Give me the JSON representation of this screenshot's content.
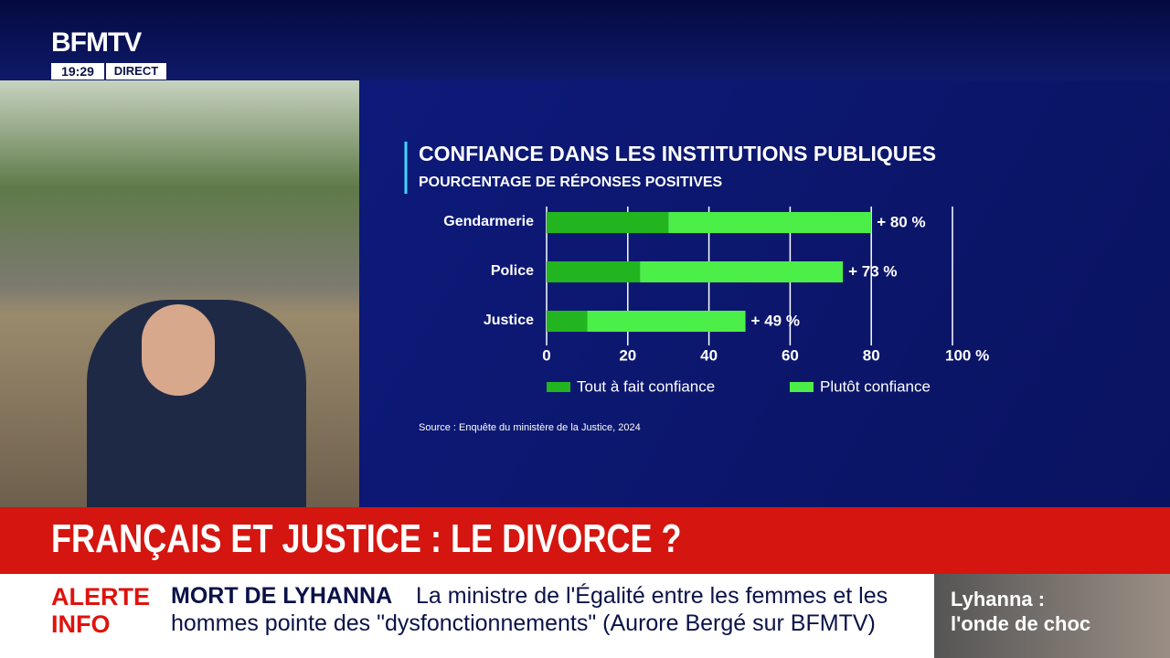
{
  "channel": {
    "logo": "BFMTV",
    "time": "19:29",
    "live": "DIRECT"
  },
  "headline": "FRANÇAIS ET JUSTICE : LE DIVORCE ?",
  "ticker": {
    "alert_line1": "ALERTE",
    "alert_line2": "INFO",
    "topic": "MORT DE LYHANNA",
    "text_line1": "La ministre de l'Égalité entre les femmes et les",
    "text_line2": "hommes pointe des \"dysfonctionnements\" (Aurore Bergé sur BFMTV)",
    "side_line1": "Lyhanna :",
    "side_line2": "l'onde de choc"
  },
  "chart_data": {
    "type": "stacked-hbar",
    "title": "CONFIANCE DANS LES INSTITUTIONS PUBLIQUES",
    "subtitle": "POURCENTAGE DE RÉPONSES POSITIVES",
    "categories": [
      "Gendarmerie",
      "Police",
      "Justice"
    ],
    "series": [
      {
        "name": "Tout à fait confiance",
        "color": "#22b51f",
        "values": [
          30,
          23,
          10
        ]
      },
      {
        "name": "Plutôt confiance",
        "color": "#4cef48",
        "values": [
          50,
          50,
          39
        ]
      }
    ],
    "totals": [
      80,
      73,
      49
    ],
    "total_labels": [
      "+ 80 %",
      "+ 73 %",
      "+ 49 %"
    ],
    "xlim": [
      0,
      100
    ],
    "xticks": [
      0,
      20,
      40,
      60,
      80,
      {
        "value": 100,
        "label": "100 %"
      }
    ],
    "grid": true,
    "source": "Source : Enquête du ministère de la Justice, 2024"
  }
}
